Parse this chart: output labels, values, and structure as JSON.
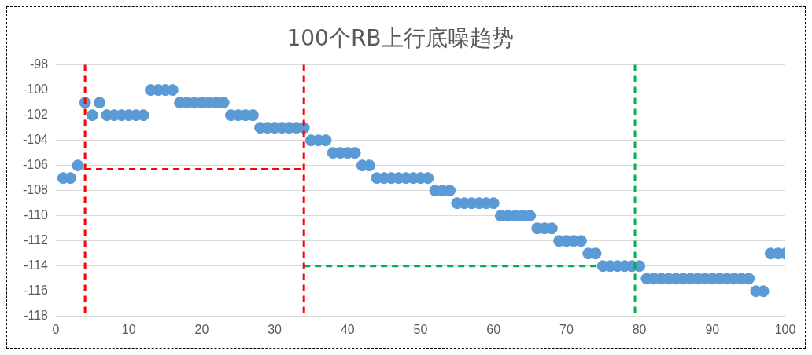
{
  "chart_data": {
    "type": "scatter",
    "title": "100个RB上行底噪趋势",
    "x": [
      1,
      2,
      3,
      4,
      5,
      6,
      7,
      8,
      9,
      10,
      11,
      12,
      13,
      14,
      15,
      16,
      17,
      18,
      19,
      20,
      21,
      22,
      23,
      24,
      25,
      26,
      27,
      28,
      29,
      30,
      31,
      32,
      33,
      34,
      35,
      36,
      37,
      38,
      39,
      40,
      41,
      42,
      43,
      44,
      45,
      46,
      47,
      48,
      49,
      50,
      51,
      52,
      53,
      54,
      55,
      56,
      57,
      58,
      59,
      60,
      61,
      62,
      63,
      64,
      65,
      66,
      67,
      68,
      69,
      70,
      71,
      72,
      73,
      74,
      75,
      76,
      77,
      78,
      79,
      80,
      81,
      82,
      83,
      84,
      85,
      86,
      87,
      88,
      89,
      90,
      91,
      92,
      93,
      94,
      95,
      96,
      97,
      98,
      99,
      100
    ],
    "series": [
      {
        "color": "#5b9bd5",
        "marker": "circle",
        "values": [
          -107,
          -107,
          -106,
          -101,
          -102,
          -101,
          -102,
          -102,
          -102,
          -102,
          -102,
          -102,
          -100,
          -100,
          -100,
          -100,
          -101,
          -101,
          -101,
          -101,
          -101,
          -101,
          -101,
          -102,
          -102,
          -102,
          -102,
          -103,
          -103,
          -103,
          -103,
          -103,
          -103,
          -103,
          -104,
          -104,
          -104,
          -105,
          -105,
          -105,
          -105,
          -106,
          -106,
          -107,
          -107,
          -107,
          -107,
          -107,
          -107,
          -107,
          -107,
          -108,
          -108,
          -108,
          -109,
          -109,
          -109,
          -109,
          -109,
          -109,
          -110,
          -110,
          -110,
          -110,
          -110,
          -111,
          -111,
          -111,
          -112,
          -112,
          -112,
          -112,
          -113,
          -113,
          -114,
          -114,
          -114,
          -114,
          -114,
          -114,
          -115,
          -115,
          -115,
          -115,
          -115,
          -115,
          -115,
          -115,
          -115,
          -115,
          -115,
          -115,
          -115,
          -115,
          -115,
          -116,
          -116,
          -113,
          -113,
          -113
        ]
      },
      {
        "type": "line",
        "color": "#ff0000",
        "line_style": "dashed",
        "x": [
          4,
          34
        ],
        "values": [
          -106.3,
          -106.3
        ]
      },
      {
        "type": "line",
        "color": "#00b050",
        "line_style": "dashed",
        "x": [
          34,
          79.4
        ],
        "values": [
          -114,
          -114
        ]
      }
    ],
    "ref_lines": [
      {
        "axis": "x",
        "value": 4,
        "color": "#ff0000",
        "line_style": "dashed"
      },
      {
        "axis": "x",
        "value": 34,
        "color": "#ff0000",
        "line_style": "dashed"
      },
      {
        "axis": "x",
        "value": 79.4,
        "color": "#00b050",
        "line_style": "dashed"
      }
    ],
    "xlim": [
      0,
      100
    ],
    "xticks": [
      0,
      10,
      20,
      30,
      40,
      50,
      60,
      70,
      80,
      90,
      100
    ],
    "ylim": [
      -118,
      -98
    ],
    "yticks": [
      -118,
      -116,
      -114,
      -112,
      -110,
      -108,
      -106,
      -104,
      -102,
      -100,
      -98
    ],
    "grid": "y",
    "legend": false
  }
}
